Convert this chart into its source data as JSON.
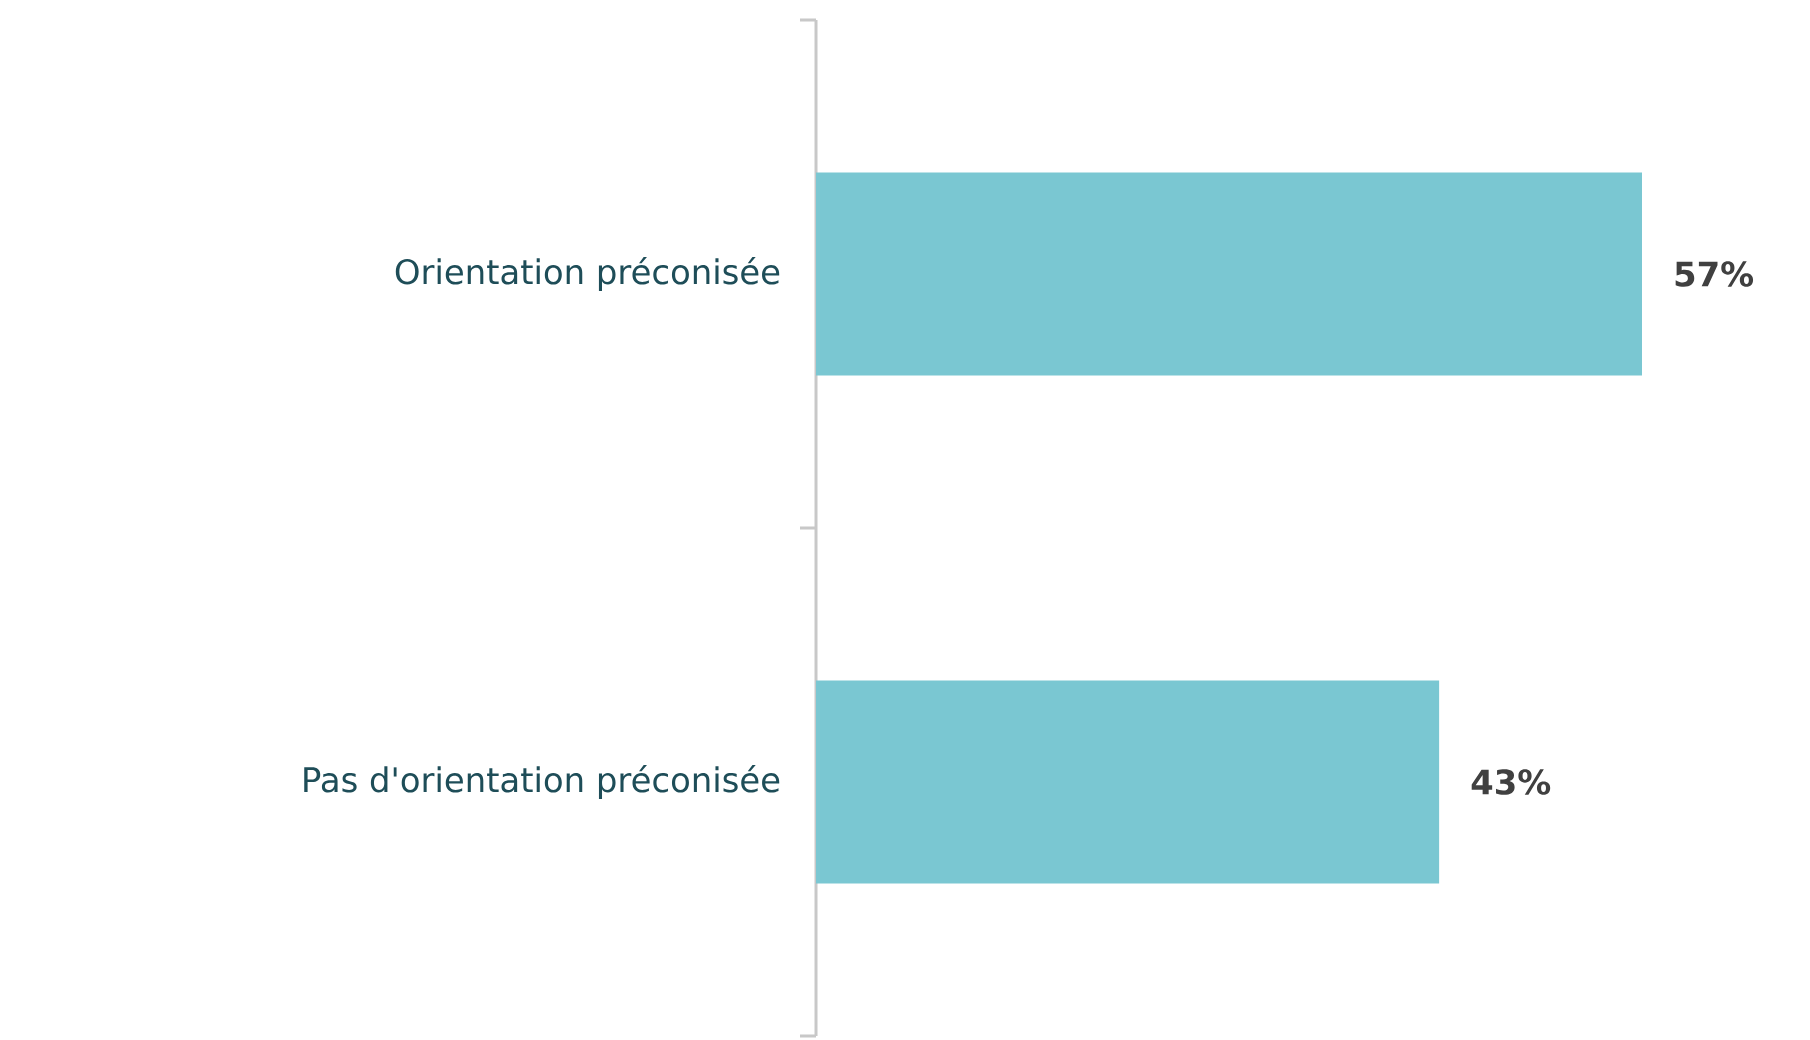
{
  "chart_data": {
    "type": "bar",
    "orientation": "horizontal",
    "categories": [
      "Orientation préconisée",
      "Pas d'orientation préconisée"
    ],
    "values": [
      57,
      43
    ],
    "color": "#7ac7d2",
    "value_labels": [
      "57%",
      "43%"
    ],
    "tick_labels": "y"
  }
}
